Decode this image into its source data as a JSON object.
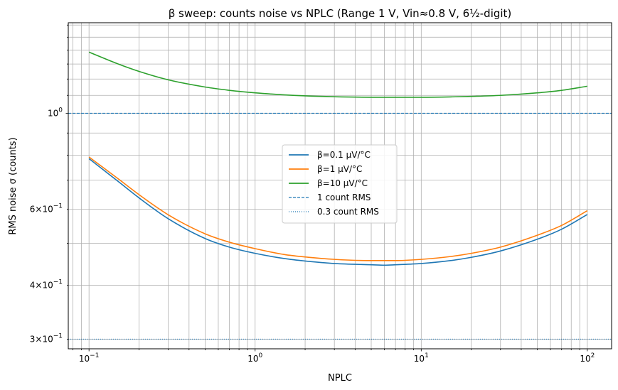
{
  "chart_data": {
    "type": "line",
    "title": "β sweep: counts noise vs NPLC (Range 1 V, Vin≈0.8 V, 6½-digit)",
    "xlabel": "NPLC",
    "ylabel": "RMS noise σ (counts)",
    "xscale": "log",
    "yscale": "log",
    "xlim": [
      0.075,
      140
    ],
    "ylim": [
      0.285,
      1.62
    ],
    "grid": true,
    "legend_position": "center",
    "x_ticks": [
      {
        "value": 0.1,
        "base": "10",
        "exp": "−1"
      },
      {
        "value": 1,
        "base": "10",
        "exp": "0"
      },
      {
        "value": 10,
        "base": "10",
        "exp": "1"
      },
      {
        "value": 100,
        "base": "10",
        "exp": "2"
      }
    ],
    "y_ticks": [
      {
        "value": 0.3,
        "mant": "3",
        "base": "10",
        "exp": "−1"
      },
      {
        "value": 0.4,
        "mant": "4",
        "base": "10",
        "exp": "−1"
      },
      {
        "value": 0.6,
        "mant": "6",
        "base": "10",
        "exp": "−1"
      },
      {
        "value": 1.0,
        "mant": "",
        "base": "10",
        "exp": "0"
      }
    ],
    "series": [
      {
        "name": "β=0.1 µV/°C",
        "color": "#1f77b4",
        "x": [
          0.1,
          0.15,
          0.2,
          0.3,
          0.5,
          0.7,
          1,
          1.5,
          2,
          3,
          5,
          6,
          7,
          10,
          15,
          20,
          30,
          50,
          70,
          100
        ],
        "values": [
          0.785,
          0.695,
          0.637,
          0.57,
          0.513,
          0.49,
          0.474,
          0.461,
          0.455,
          0.449,
          0.446,
          0.445,
          0.446,
          0.449,
          0.456,
          0.464,
          0.48,
          0.511,
          0.539,
          0.583
        ]
      },
      {
        "name": "β=1 µV/°C",
        "color": "#ff7f0e",
        "x": [
          0.1,
          0.15,
          0.2,
          0.3,
          0.5,
          0.7,
          1,
          1.5,
          2,
          3,
          5,
          6,
          7,
          10,
          15,
          20,
          30,
          50,
          70,
          100
        ],
        "values": [
          0.792,
          0.705,
          0.648,
          0.582,
          0.526,
          0.503,
          0.486,
          0.471,
          0.465,
          0.459,
          0.456,
          0.456,
          0.456,
          0.459,
          0.466,
          0.474,
          0.49,
          0.522,
          0.55,
          0.595
        ]
      },
      {
        "name": "β=10 µV/°C",
        "color": "#2ca02c",
        "x": [
          0.1,
          0.15,
          0.2,
          0.3,
          0.5,
          0.7,
          1,
          1.5,
          2,
          3,
          5,
          6,
          7,
          10,
          15,
          20,
          30,
          50,
          70,
          100
        ],
        "values": [
          1.385,
          1.3,
          1.25,
          1.195,
          1.15,
          1.13,
          1.115,
          1.103,
          1.097,
          1.092,
          1.089,
          1.089,
          1.089,
          1.089,
          1.091,
          1.094,
          1.1,
          1.115,
          1.13,
          1.155
        ]
      }
    ],
    "hlines": [
      {
        "name": "1 count RMS",
        "value": 1.0,
        "color": "#1f77b4",
        "style": "dashed"
      },
      {
        "name": "0.3 count RMS",
        "value": 0.3,
        "color": "#1f77b4",
        "style": "dotted"
      }
    ]
  }
}
